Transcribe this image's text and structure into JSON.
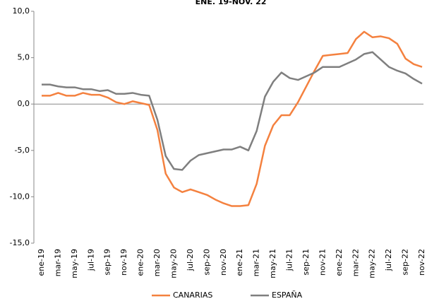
{
  "chart_data": {
    "type": "line",
    "title": "ENE. 19-NOV. 22",
    "categories": [
      "ene-19",
      null,
      "mar-19",
      null,
      "may-19",
      null,
      "jul-19",
      null,
      "sep-19",
      null,
      "nov-19",
      null,
      "ene-20",
      null,
      "mar-20",
      null,
      "may-20",
      null,
      "jul-20",
      null,
      "sep-20",
      null,
      "nov-20",
      null,
      "ene-21",
      null,
      "mar-21",
      null,
      "may-21",
      null,
      "jul-21",
      null,
      "sep-21",
      null,
      "nov-21",
      null,
      "ene-22",
      null,
      "mar-22",
      null,
      "may-22",
      null,
      "jul-22",
      null,
      "sep-22",
      null,
      "nov-22"
    ],
    "series": [
      {
        "name": "CANARIAS",
        "color": "#f4813f",
        "values": [
          0.9,
          0.9,
          1.2,
          0.9,
          0.9,
          1.2,
          1.0,
          1.0,
          0.7,
          0.2,
          0.0,
          0.3,
          0.1,
          -0.1,
          -2.8,
          -7.5,
          -9.0,
          -9.5,
          -9.2,
          -9.5,
          -9.8,
          -10.3,
          -10.7,
          -11.0,
          -11.0,
          -10.9,
          -8.6,
          -4.5,
          -2.3,
          -1.2,
          -1.2,
          0.2,
          1.9,
          3.6,
          5.2,
          5.3,
          5.4,
          5.5,
          7.0,
          7.8,
          7.2,
          7.3,
          7.1,
          6.5,
          4.9,
          4.3,
          4.0
        ]
      },
      {
        "name": "ESPAÑA",
        "color": "#7f7f7f",
        "values": [
          2.1,
          2.1,
          1.9,
          1.8,
          1.8,
          1.6,
          1.6,
          1.4,
          1.5,
          1.1,
          1.1,
          1.2,
          1.0,
          0.9,
          -1.7,
          -5.6,
          -7.0,
          -7.1,
          -6.1,
          -5.5,
          -5.3,
          -5.1,
          -4.9,
          -4.9,
          -4.6,
          -5.0,
          -2.9,
          0.8,
          2.4,
          3.4,
          2.8,
          2.6,
          3.0,
          3.4,
          4.0,
          4.0,
          4.0,
          4.4,
          4.8,
          5.4,
          5.6,
          4.8,
          4.0,
          3.6,
          3.3,
          2.7,
          2.2
        ]
      }
    ],
    "ylim": [
      -15,
      10
    ],
    "yticks": [
      {
        "value": -15,
        "label": "-15,0"
      },
      {
        "value": -10,
        "label": "-10,0"
      },
      {
        "value": -5,
        "label": "-5,0"
      },
      {
        "value": 0,
        "label": "0,0"
      },
      {
        "value": 5,
        "label": "5,0"
      },
      {
        "value": 10,
        "label": "10,0"
      }
    ],
    "legend": "bottom"
  }
}
